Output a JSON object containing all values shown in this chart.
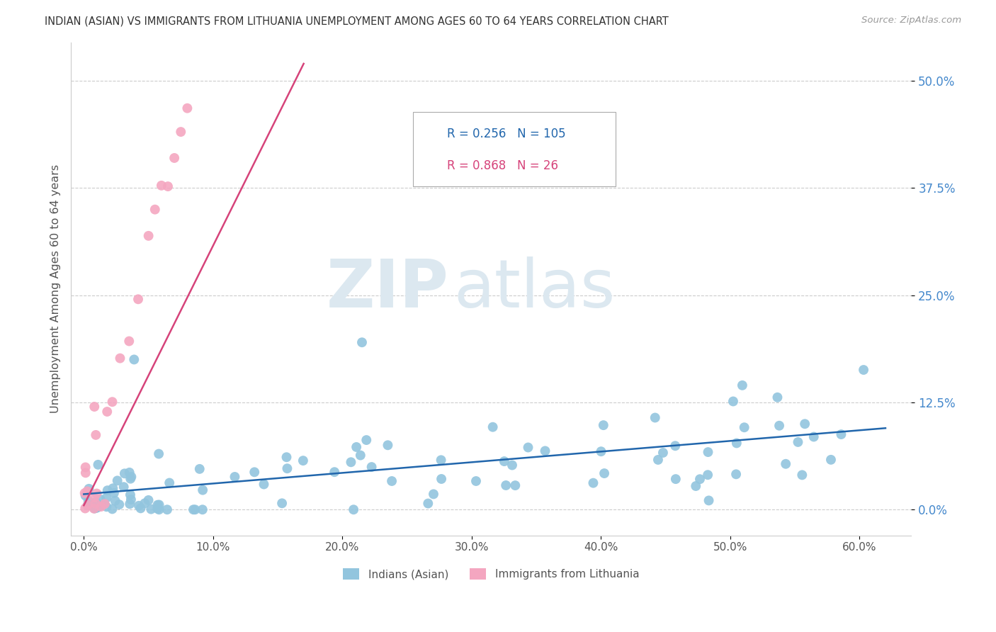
{
  "title": "INDIAN (ASIAN) VS IMMIGRANTS FROM LITHUANIA UNEMPLOYMENT AMONG AGES 60 TO 64 YEARS CORRELATION CHART",
  "source": "Source: ZipAtlas.com",
  "ylabel": "Unemployment Among Ages 60 to 64 years",
  "xtick_vals": [
    0.0,
    0.1,
    0.2,
    0.3,
    0.4,
    0.5,
    0.6
  ],
  "xtick_labels": [
    "0.0%",
    "10.0%",
    "20.0%",
    "30.0%",
    "40.0%",
    "50.0%",
    "60.0%"
  ],
  "ytick_vals": [
    0.0,
    0.125,
    0.25,
    0.375,
    0.5
  ],
  "ytick_labels": [
    "0.0%",
    "12.5%",
    "25.0%",
    "37.5%",
    "50.0%"
  ],
  "xlim": [
    -0.01,
    0.64
  ],
  "ylim": [
    -0.03,
    0.545
  ],
  "legend_R_blue": "0.256",
  "legend_N_blue": "105",
  "legend_R_pink": "0.868",
  "legend_N_pink": "26",
  "blue_color": "#92c5de",
  "pink_color": "#f4a6c0",
  "line_blue": "#2166ac",
  "line_pink": "#d6437a",
  "watermark_zip": "ZIP",
  "watermark_atlas": "atlas",
  "watermark_color": "#dce8f0",
  "title_color": "#333333",
  "source_color": "#999999",
  "axis_label_color": "#4488cc",
  "tick_label_color": "#555555",
  "legend_text_blue_color": "#2166ac",
  "legend_text_pink_color": "#d6437a",
  "blue_line_x0": 0.0,
  "blue_line_x1": 0.62,
  "blue_line_y0": 0.018,
  "blue_line_y1": 0.095,
  "pink_line_x0": 0.0,
  "pink_line_x1": 0.17,
  "pink_line_y0": 0.005,
  "pink_line_y1": 0.52
}
